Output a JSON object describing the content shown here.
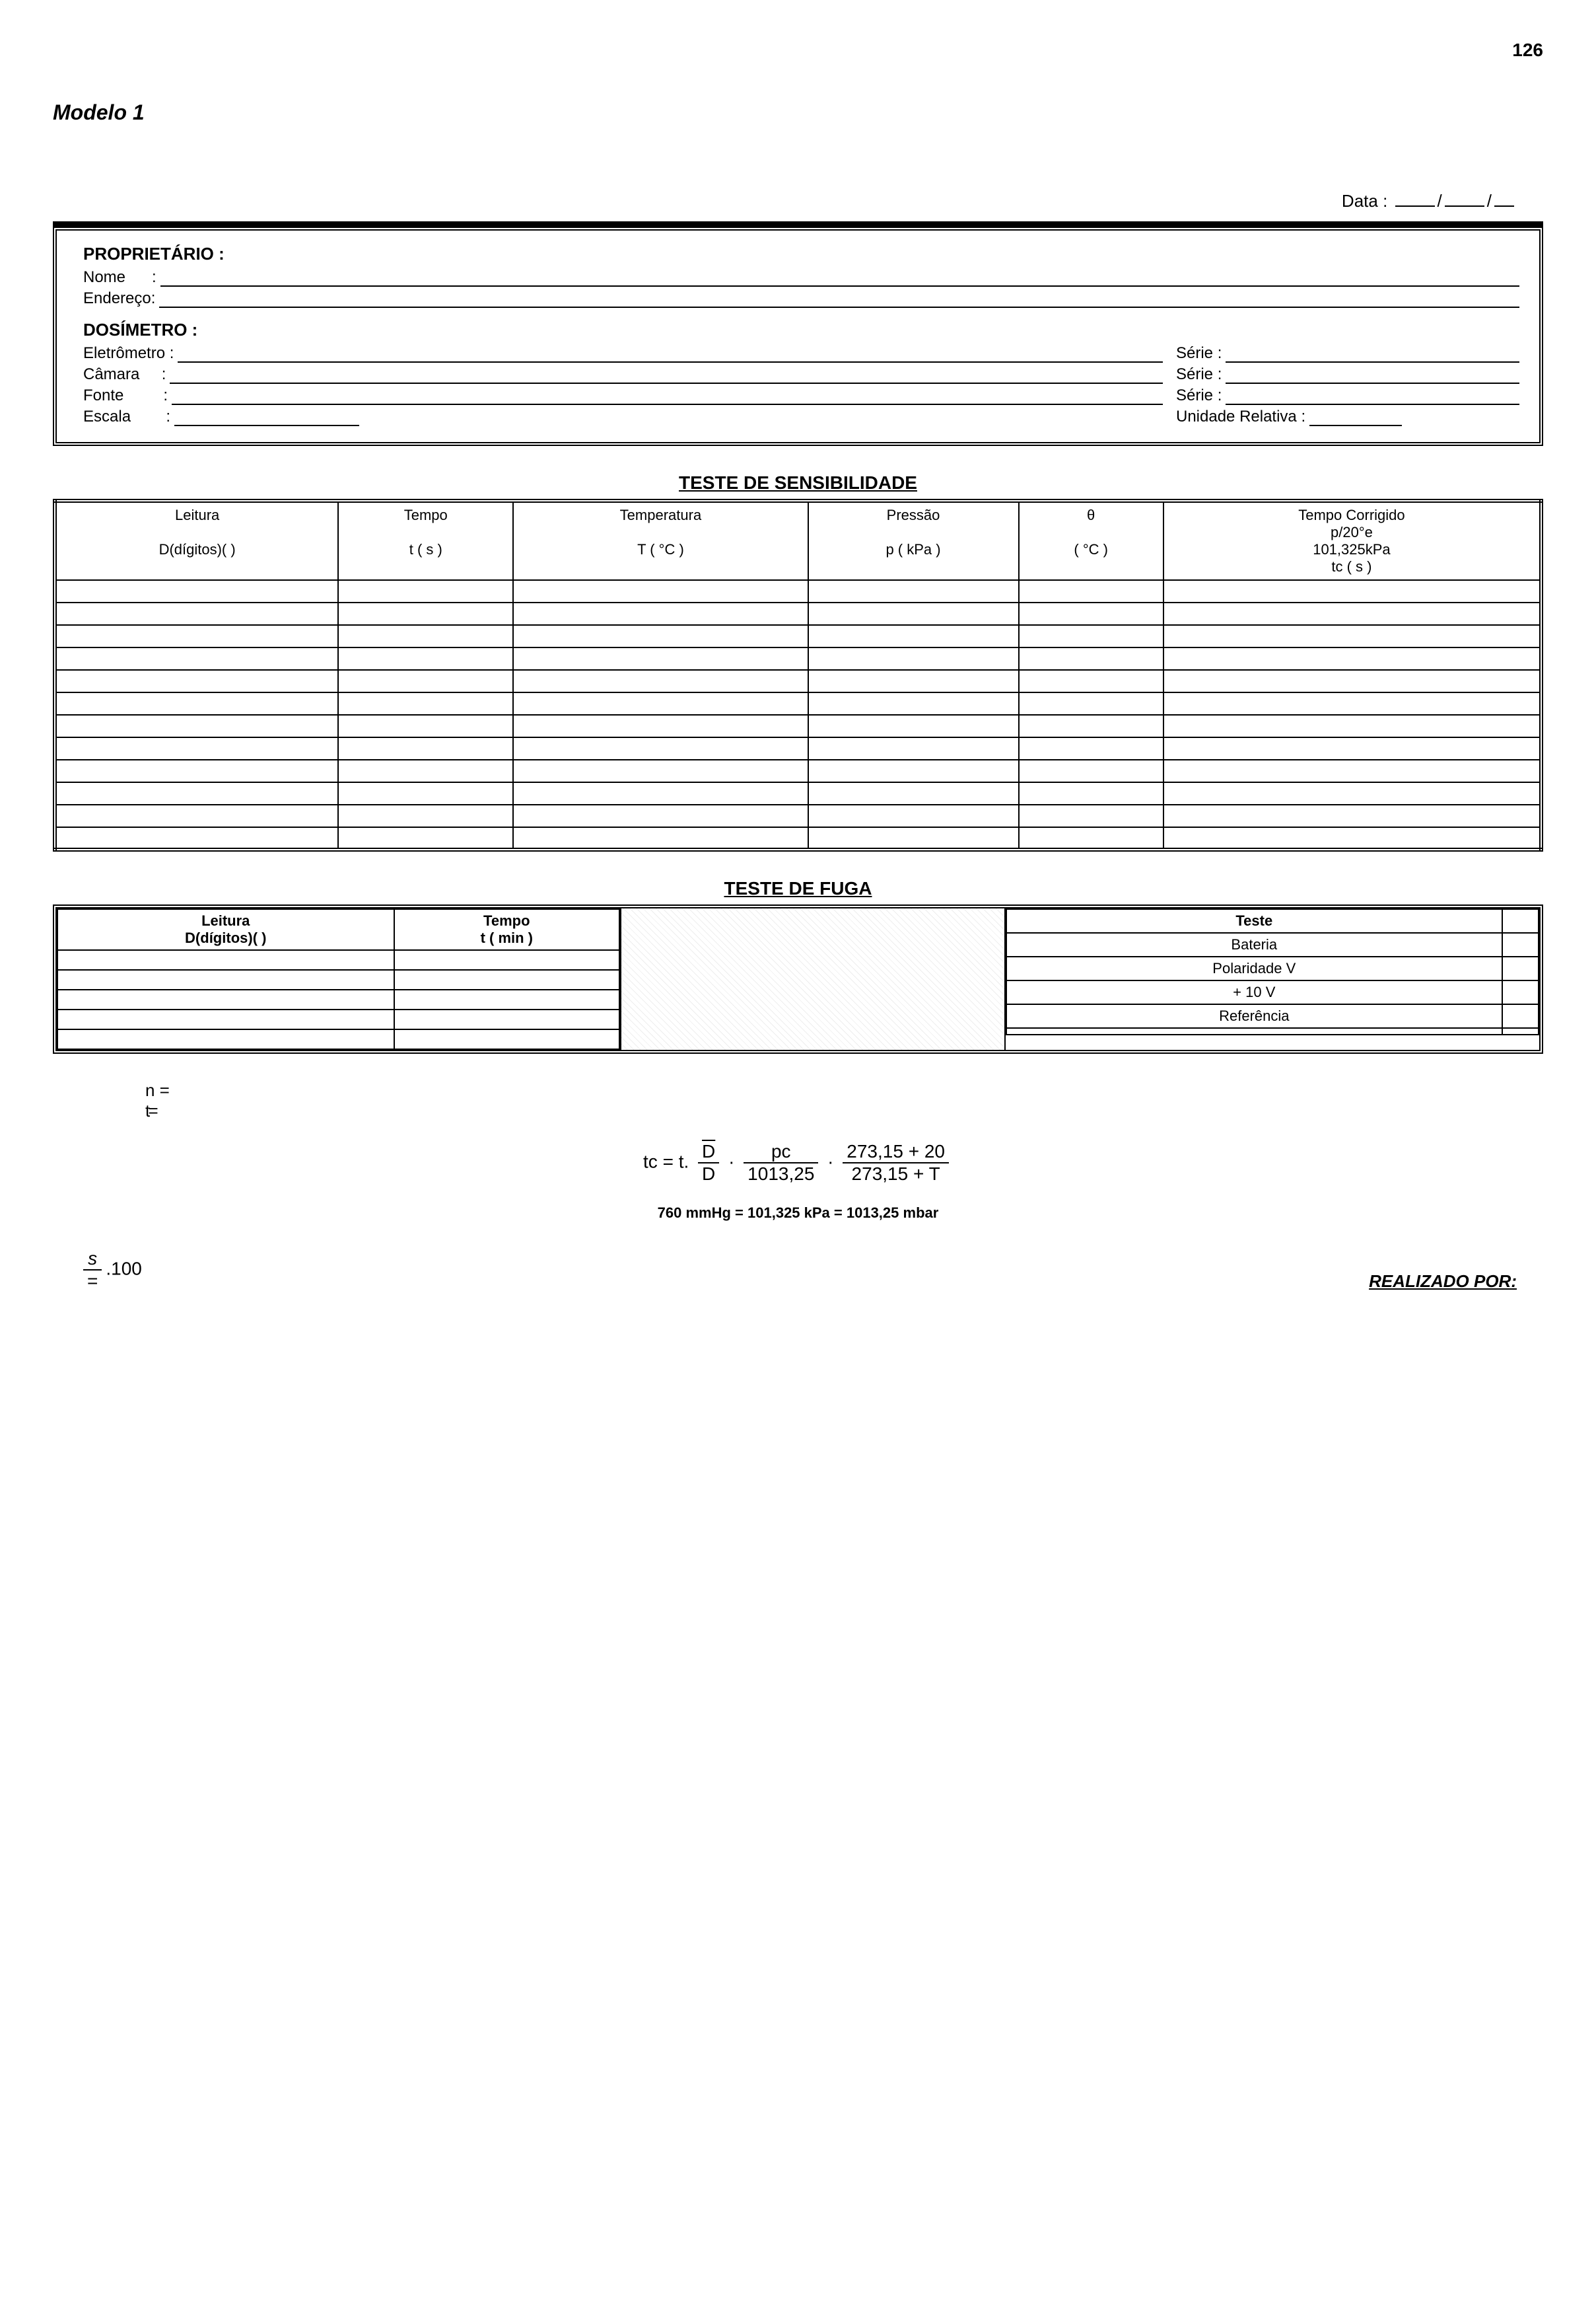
{
  "page_number": "126",
  "model_title": "Modelo 1",
  "data_label": "Data :",
  "date_sep": "/",
  "header_box": {
    "proprietario_label": "PROPRIETÁRIO :",
    "nome_label": "Nome      :",
    "endereco_label": "Endereço:",
    "dosimetro_label": "DOSÍMETRO  :",
    "eletrometro_label": "Eletrômetro :",
    "camara_label": "Câmara     :",
    "fonte_label": "Fonte         :",
    "escala_label": "Escala        :",
    "serie_label": "Série :",
    "unidade_label": "Unidade Relativa :"
  },
  "sensibilidade": {
    "title": "TESTE DE SENSIBILIDADE",
    "columns": {
      "leitura_h1": "Leitura",
      "leitura_h2": "D(dígitos)(        )",
      "tempo_h1": "Tempo",
      "tempo_h2": "t ( s )",
      "temperatura_h1": "Temperatura",
      "temperatura_h2": "T ( °C )",
      "pressao_h1": "Pressão",
      "pressao_h2": "p ( kPa )",
      "theta_h1": "θ",
      "theta_h2": "( °C )",
      "tcorr_h1": "Tempo Corrigido",
      "tcorr_h2": "p/20°e",
      "tcorr_h3": "101,325kPa",
      "tcorr_h4": "tc ( s )"
    },
    "blank_rows": 12
  },
  "fuga": {
    "title": "TESTE DE FUGA",
    "left_cols": {
      "leitura_h1": "Leitura",
      "leitura_h2": "D(dígitos)(        )",
      "tempo_h1": "Tempo",
      "tempo_h2": "t ( min )"
    },
    "left_blank_rows": 5,
    "right_header": "Teste",
    "right_rows": [
      "Bateria",
      "Polaridade  V",
      "+ 10  V",
      "Referência",
      ""
    ]
  },
  "formulas": {
    "n_eq": "n    =",
    "t_eq": "t     =",
    "tc_prefix": "tc = t.",
    "frac1_num": "D",
    "frac1_den": "D",
    "dot": "·",
    "frac2_num": "pc",
    "frac2_den": "1013,25",
    "frac3_num": "273,15 + 20",
    "frac3_den": "273,15 + T",
    "conversion": "760 mmHg  =  101,325 kPa  =  1013,25 mbar",
    "sigma_num": "s",
    "sigma_den": "=",
    "sigma_tail": ".100"
  },
  "realizado": "REALIZADO POR:"
}
